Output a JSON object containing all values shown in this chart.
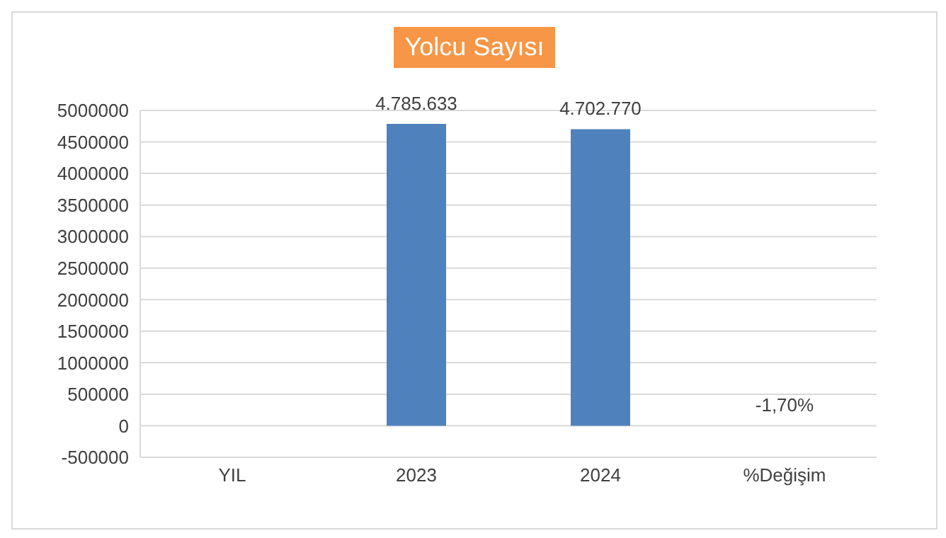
{
  "chart_data": {
    "type": "bar",
    "title": "Yolcu Sayısı",
    "categories": [
      "YIL",
      "2023",
      "2024",
      "%Değişim"
    ],
    "values": [
      null,
      4785633,
      4702770,
      -1.7
    ],
    "value_labels": [
      null,
      "4.785.633",
      "4.702.770",
      "-1,70%"
    ],
    "color": "#4f81bd",
    "ylim": [
      -500000,
      5000000
    ],
    "yticks": [
      -500000,
      0,
      500000,
      1000000,
      1500000,
      2000000,
      2500000,
      3000000,
      3500000,
      4000000,
      4500000,
      5000000
    ],
    "grid": "y"
  }
}
